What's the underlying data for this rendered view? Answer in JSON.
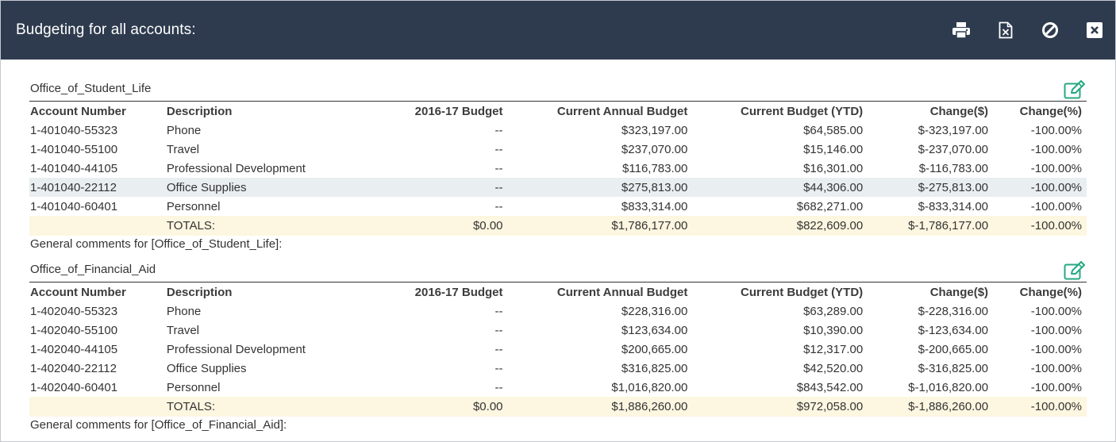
{
  "window": {
    "title": "Budgeting for all accounts:",
    "toolbar": {
      "print_icon": "printer-icon",
      "export_icon": "excel-file-icon",
      "cancel_icon": "ban-icon",
      "close_icon": "close-icon"
    }
  },
  "colors": {
    "titlebar": "#2e3b4e",
    "edit_icon": "#27a883",
    "highlight_row": "#e9eef0",
    "totals_row": "#fdf6e0"
  },
  "columns": [
    "Account Number",
    "Description",
    "2016-17 Budget",
    "Current Annual Budget",
    "Current Budget (YTD)",
    "Change($)",
    "Change(%)"
  ],
  "sections": [
    {
      "name": "Office_of_Student_Life",
      "rows": [
        [
          "1-401040-55323",
          "Phone",
          "--",
          "$323,197.00",
          "$64,585.00",
          "$-323,197.00",
          "-100.00%"
        ],
        [
          "1-401040-55100",
          "Travel",
          "--",
          "$237,070.00",
          "$15,146.00",
          "$-237,070.00",
          "-100.00%"
        ],
        [
          "1-401040-44105",
          "Professional Development",
          "--",
          "$116,783.00",
          "$16,301.00",
          "$-116,783.00",
          "-100.00%"
        ],
        [
          "1-401040-22112",
          "Office Supplies",
          "--",
          "$275,813.00",
          "$44,306.00",
          "$-275,813.00",
          "-100.00%"
        ],
        [
          "1-401040-60401",
          "Personnel",
          "--",
          "$833,314.00",
          "$682,271.00",
          "$-833,314.00",
          "-100.00%"
        ]
      ],
      "totals": [
        "",
        "TOTALS:",
        "$0.00",
        "$1,786,177.00",
        "$822,609.00",
        "$-1,786,177.00",
        "-100.00%"
      ],
      "comments": "General comments for [Office_of_Student_Life]:"
    },
    {
      "name": "Office_of_Financial_Aid",
      "rows": [
        [
          "1-402040-55323",
          "Phone",
          "--",
          "$228,316.00",
          "$63,289.00",
          "$-228,316.00",
          "-100.00%"
        ],
        [
          "1-402040-55100",
          "Travel",
          "--",
          "$123,634.00",
          "$10,390.00",
          "$-123,634.00",
          "-100.00%"
        ],
        [
          "1-402040-44105",
          "Professional Development",
          "--",
          "$200,665.00",
          "$12,317.00",
          "$-200,665.00",
          "-100.00%"
        ],
        [
          "1-402040-22112",
          "Office Supplies",
          "--",
          "$316,825.00",
          "$42,520.00",
          "$-316,825.00",
          "-100.00%"
        ],
        [
          "1-402040-60401",
          "Personnel",
          "--",
          "$1,016,820.00",
          "$843,542.00",
          "$-1,016,820.00",
          "-100.00%"
        ]
      ],
      "totals": [
        "",
        "TOTALS:",
        "$0.00",
        "$1,886,260.00",
        "$972,058.00",
        "$-1,886,260.00",
        "-100.00%"
      ],
      "comments": "General comments for [Office_of_Financial_Aid]:"
    }
  ]
}
